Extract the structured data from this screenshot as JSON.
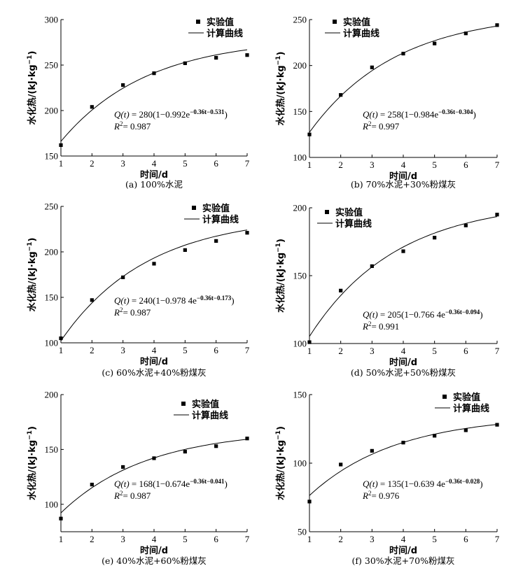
{
  "legend": {
    "marker_label": "实验值",
    "line_label": "计算曲线"
  },
  "chart_data": [
    {
      "type": "scatter",
      "caption": "(a) 100%水泥",
      "xlabel": "时间/d",
      "ylabel": "水化热/(kJ·kg",
      "ylabel_sup": "−1",
      "ylabel_close": ")",
      "xlim": [
        1,
        7
      ],
      "ylim": [
        150,
        300
      ],
      "xticks": [
        1,
        2,
        3,
        4,
        5,
        6,
        7
      ],
      "yticks": [
        150,
        200,
        250,
        300
      ],
      "series": [
        {
          "name": "实验值",
          "x": [
            1,
            2,
            3,
            4,
            5,
            6,
            7
          ],
          "y": [
            162,
            204,
            228,
            241,
            252,
            258,
            261
          ]
        },
        {
          "name": "计算曲线",
          "model": {
            "Q": 280,
            "a": 0.992,
            "k": 0.36,
            "b": 0.531
          }
        }
      ],
      "equation": {
        "lhs": "Q(t)",
        "body": "280(1−0.992e",
        "exponent": "−0.36t−0.531",
        "tail": ")"
      },
      "r2": {
        "label": "R",
        "sup": "2",
        "value": "= 0.987"
      }
    },
    {
      "type": "scatter",
      "caption": "(b) 70%水泥+30%粉煤灰",
      "xlabel": "时间/d",
      "ylabel": "水化热/(kJ·kg",
      "ylabel_sup": "−1",
      "ylabel_close": ")",
      "xlim": [
        1,
        7
      ],
      "ylim": [
        100,
        250
      ],
      "xticks": [
        1,
        2,
        3,
        4,
        5,
        6,
        7
      ],
      "yticks": [
        100,
        150,
        200,
        250
      ],
      "series": [
        {
          "name": "实验值",
          "x": [
            1,
            2,
            3,
            4,
            5,
            6,
            7
          ],
          "y": [
            125,
            168,
            198,
            213,
            224,
            235,
            244
          ]
        },
        {
          "name": "计算曲线",
          "model": {
            "Q": 258,
            "a": 0.984,
            "k": 0.36,
            "b": 0.304
          }
        }
      ],
      "equation": {
        "lhs": "Q(t)",
        "body": "258(1−0.984e",
        "exponent": "−0.36t−0.304",
        "tail": ")"
      },
      "r2": {
        "label": "R",
        "sup": "2",
        "value": "= 0.997"
      }
    },
    {
      "type": "scatter",
      "caption": "(c) 60%水泥+40%粉煤灰",
      "xlabel": "时间/d",
      "ylabel": "水化热/(kJ·kg",
      "ylabel_sup": "−1",
      "ylabel_close": ")",
      "xlim": [
        1,
        7
      ],
      "ylim": [
        100,
        250
      ],
      "xticks": [
        1,
        2,
        3,
        4,
        5,
        6,
        7
      ],
      "yticks": [
        100,
        150,
        200,
        250
      ],
      "series": [
        {
          "name": "实验值",
          "x": [
            1,
            2,
            3,
            4,
            5,
            6,
            7
          ],
          "y": [
            105,
            147,
            172,
            187,
            202,
            212,
            221
          ]
        },
        {
          "name": "计算曲线",
          "model": {
            "Q": 240,
            "a": 0.9784,
            "k": 0.36,
            "b": 0.173
          }
        }
      ],
      "equation": {
        "lhs": "Q(t)",
        "body": "240(1−0.978 4e",
        "exponent": "−0.36t−0.173",
        "tail": ")"
      },
      "r2": {
        "label": "R",
        "sup": "2",
        "value": "= 0.987"
      }
    },
    {
      "type": "scatter",
      "caption": "(d) 50%水泥+50%粉煤灰",
      "xlabel": "时间/d",
      "ylabel": "水化热/(kJ·kg",
      "ylabel_sup": "−1",
      "ylabel_close": ")",
      "xlim": [
        1,
        7
      ],
      "ylim": [
        100,
        200
      ],
      "xticks": [
        1,
        2,
        3,
        4,
        5,
        6,
        7
      ],
      "yticks": [
        100,
        150,
        200
      ],
      "series": [
        {
          "name": "实验值",
          "x": [
            1,
            2,
            3,
            4,
            5,
            6,
            7
          ],
          "y": [
            101,
            139,
            157,
            168,
            178,
            187,
            195
          ]
        },
        {
          "name": "计算曲线",
          "model": {
            "Q": 205,
            "a": 0.7664,
            "k": 0.36,
            "b": 0.094
          }
        }
      ],
      "equation": {
        "lhs": "Q(t)",
        "body": "205(1−0.766 4e",
        "exponent": "−0.36t−0.094",
        "tail": ")"
      },
      "r2": {
        "label": "R",
        "sup": "2",
        "value": "= 0.991"
      }
    },
    {
      "type": "scatter",
      "caption": "(e) 40%水泥+60%粉煤灰",
      "xlabel": "时间/d",
      "ylabel": "水化热/(kJ·kg",
      "ylabel_sup": "−1",
      "ylabel_close": ")",
      "xlim": [
        1,
        7
      ],
      "ylim": [
        75,
        200
      ],
      "xticks": [
        1,
        2,
        3,
        4,
        5,
        6,
        7
      ],
      "yticks": [
        100,
        150,
        200
      ],
      "series": [
        {
          "name": "实验值",
          "x": [
            1,
            2,
            3,
            4,
            5,
            6,
            7
          ],
          "y": [
            87,
            118,
            134,
            142,
            148,
            153,
            160
          ]
        },
        {
          "name": "计算曲线",
          "model": {
            "Q": 168,
            "a": 0.674,
            "k": 0.36,
            "b": 0.041
          }
        }
      ],
      "equation": {
        "lhs": "Q(t)",
        "body": "168(1−0.674e",
        "exponent": "−0.36t−0.041",
        "tail": ")"
      },
      "r2": {
        "label": "R",
        "sup": "2",
        "value": "= 0.987"
      }
    },
    {
      "type": "scatter",
      "caption": "(f) 30%水泥+70%粉煤灰",
      "xlabel": "时间/d",
      "ylabel": "水化热/(kJ·kg",
      "ylabel_sup": "−1",
      "ylabel_close": ")",
      "xlim": [
        1,
        7
      ],
      "ylim": [
        50,
        150
      ],
      "xticks": [
        1,
        2,
        3,
        4,
        5,
        6,
        7
      ],
      "yticks": [
        50,
        100,
        150
      ],
      "series": [
        {
          "name": "实验值",
          "x": [
            1,
            2,
            3,
            4,
            5,
            6,
            7
          ],
          "y": [
            72,
            99,
            109,
            115,
            120,
            124,
            128
          ]
        },
        {
          "name": "计算曲线",
          "model": {
            "Q": 135,
            "a": 0.6394,
            "k": 0.36,
            "b": 0.028
          }
        }
      ],
      "equation": {
        "lhs": "Q(t)",
        "body": "135(1−0.639 4e",
        "exponent": "−0.36t−0.028",
        "tail": ")"
      },
      "r2": {
        "label": "R",
        "sup": "2",
        "value": "= 0.976"
      }
    }
  ]
}
